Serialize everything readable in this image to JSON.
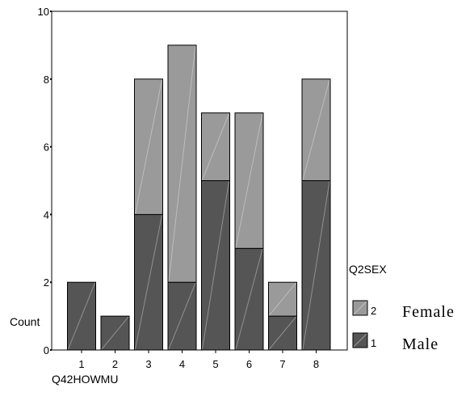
{
  "chart_data": {
    "type": "bar",
    "stacked": true,
    "categories": [
      "1",
      "2",
      "3",
      "4",
      "5",
      "6",
      "7",
      "8"
    ],
    "series": [
      {
        "code": "1",
        "name": "Male",
        "values": [
          2,
          1,
          4,
          2,
          5,
          3,
          1,
          5
        ],
        "color": "#555555"
      },
      {
        "code": "2",
        "name": "Female",
        "values": [
          0,
          0,
          4,
          7,
          2,
          4,
          1,
          3
        ],
        "color": "#9a9a9a"
      }
    ],
    "series_order_note_hidden": "",
    "xlabel": "Q42HOWMU",
    "ylabel": "Count",
    "ylim": [
      0,
      10
    ],
    "yticks": [
      "0",
      "2",
      "4",
      "6",
      "8",
      "10"
    ],
    "legend": {
      "title": "Q2SEX",
      "placement": "right"
    },
    "grid": false
  }
}
